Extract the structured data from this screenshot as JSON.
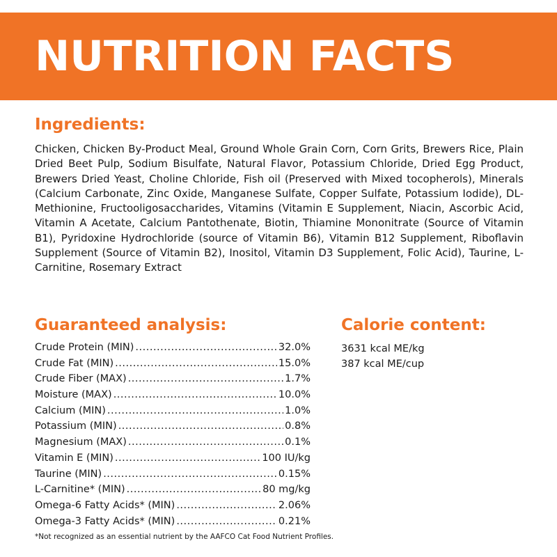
{
  "banner": {
    "title": "NUTRITION FACTS",
    "color": "#f07326"
  },
  "ingredients": {
    "heading": "Ingredients:",
    "text": "Chicken, Chicken By-Product Meal, Ground Whole Grain Corn, Corn Grits, Brewers Rice, Plain Dried Beet Pulp, Sodium Bisulfate, Natural Flavor, Potassium Chloride, Dried Egg Product, Brewers Dried Yeast, Choline Chloride, Fish oil (Preserved with Mixed tocopherols), Minerals (Calcium Carbonate, Zinc Oxide, Manganese Sulfate, Copper Sulfate, Potassium Iodide), DL-Methionine, Fructooligosaccharides, Vitamins (Vitamin E Supplement, Niacin, Ascorbic Acid, Vitamin A Acetate, Calcium Pantothenate, Biotin, Thiamine Mononitrate (Source of Vitamin B1), Pyridoxine Hydrochloride (source of Vitamin B6), Vitamin B12 Supplement, Riboflavin Supplement (Source of Vitamin B2), Inositol, Vitamin D3 Supplement, Folic Acid), Taurine, L-Carnitine, Rosemary Extract"
  },
  "guaranteed_analysis": {
    "heading": "Guaranteed analysis:",
    "rows": [
      {
        "name": "Crude Protein (MIN)",
        "value": "32.0%"
      },
      {
        "name": "Crude Fat (MIN)",
        "value": "15.0%"
      },
      {
        "name": "Crude Fiber (MAX)",
        "value": "1.7%"
      },
      {
        "name": "Moisture (MAX)",
        "value": "10.0%"
      },
      {
        "name": "Calcium (MIN)",
        "value": "1.0%"
      },
      {
        "name": "Potassium (MIN)",
        "value": "0.8%"
      },
      {
        "name": "Magnesium (MAX)",
        "value": "0.1%"
      },
      {
        "name": "Vitamin E (MIN)",
        "value": "100 IU/kg"
      },
      {
        "name": "Taurine (MIN)",
        "value": "0.15%"
      },
      {
        "name": "L-Carnitine* (MIN)",
        "value": "80 mg/kg"
      },
      {
        "name": "Omega-6 Fatty Acids* (MIN)",
        "value": "2.06%"
      },
      {
        "name": "Omega-3 Fatty Acids* (MIN)",
        "value": "0.21%"
      }
    ]
  },
  "calorie_content": {
    "heading": "Calorie content:",
    "lines": [
      "3631 kcal ME/kg",
      "387 kcal ME/cup"
    ]
  },
  "footnote": "*Not recognized as an essential nutrient by the AAFCO Cat Food Nutrient Profiles.",
  "colors": {
    "accent": "#f07326",
    "text": "#1a1a1a",
    "background": "#ffffff"
  }
}
